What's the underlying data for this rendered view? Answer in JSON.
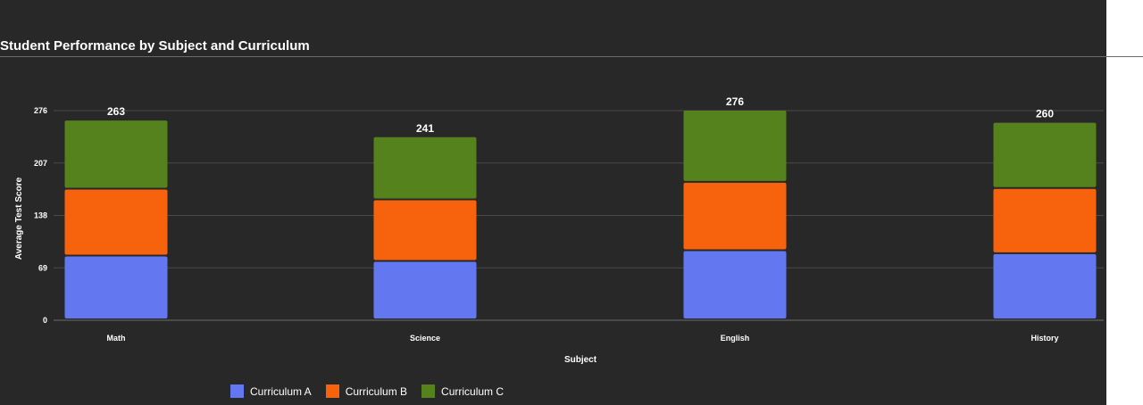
{
  "chart_data": {
    "type": "bar",
    "stacked": true,
    "title": "Student Performance by Subject and Curriculum",
    "xlabel": "Subject",
    "ylabel": "Average Test Score",
    "categories": [
      "Math",
      "Science",
      "English",
      "History"
    ],
    "series": [
      {
        "name": "Curriculum A",
        "color": "#6378f0",
        "values": [
          84,
          77,
          91,
          87
        ]
      },
      {
        "name": "Curriculum B",
        "color": "#f7630c",
        "values": [
          88,
          81,
          90,
          86
        ]
      },
      {
        "name": "Curriculum C",
        "color": "#55821c",
        "values": [
          91,
          83,
          95,
          87
        ]
      }
    ],
    "totals": [
      263,
      241,
      276,
      260
    ],
    "yticks": [
      0,
      69,
      138,
      207,
      276
    ],
    "ylim": [
      0,
      276
    ],
    "grid": true,
    "legend_position": "bottom-left"
  }
}
